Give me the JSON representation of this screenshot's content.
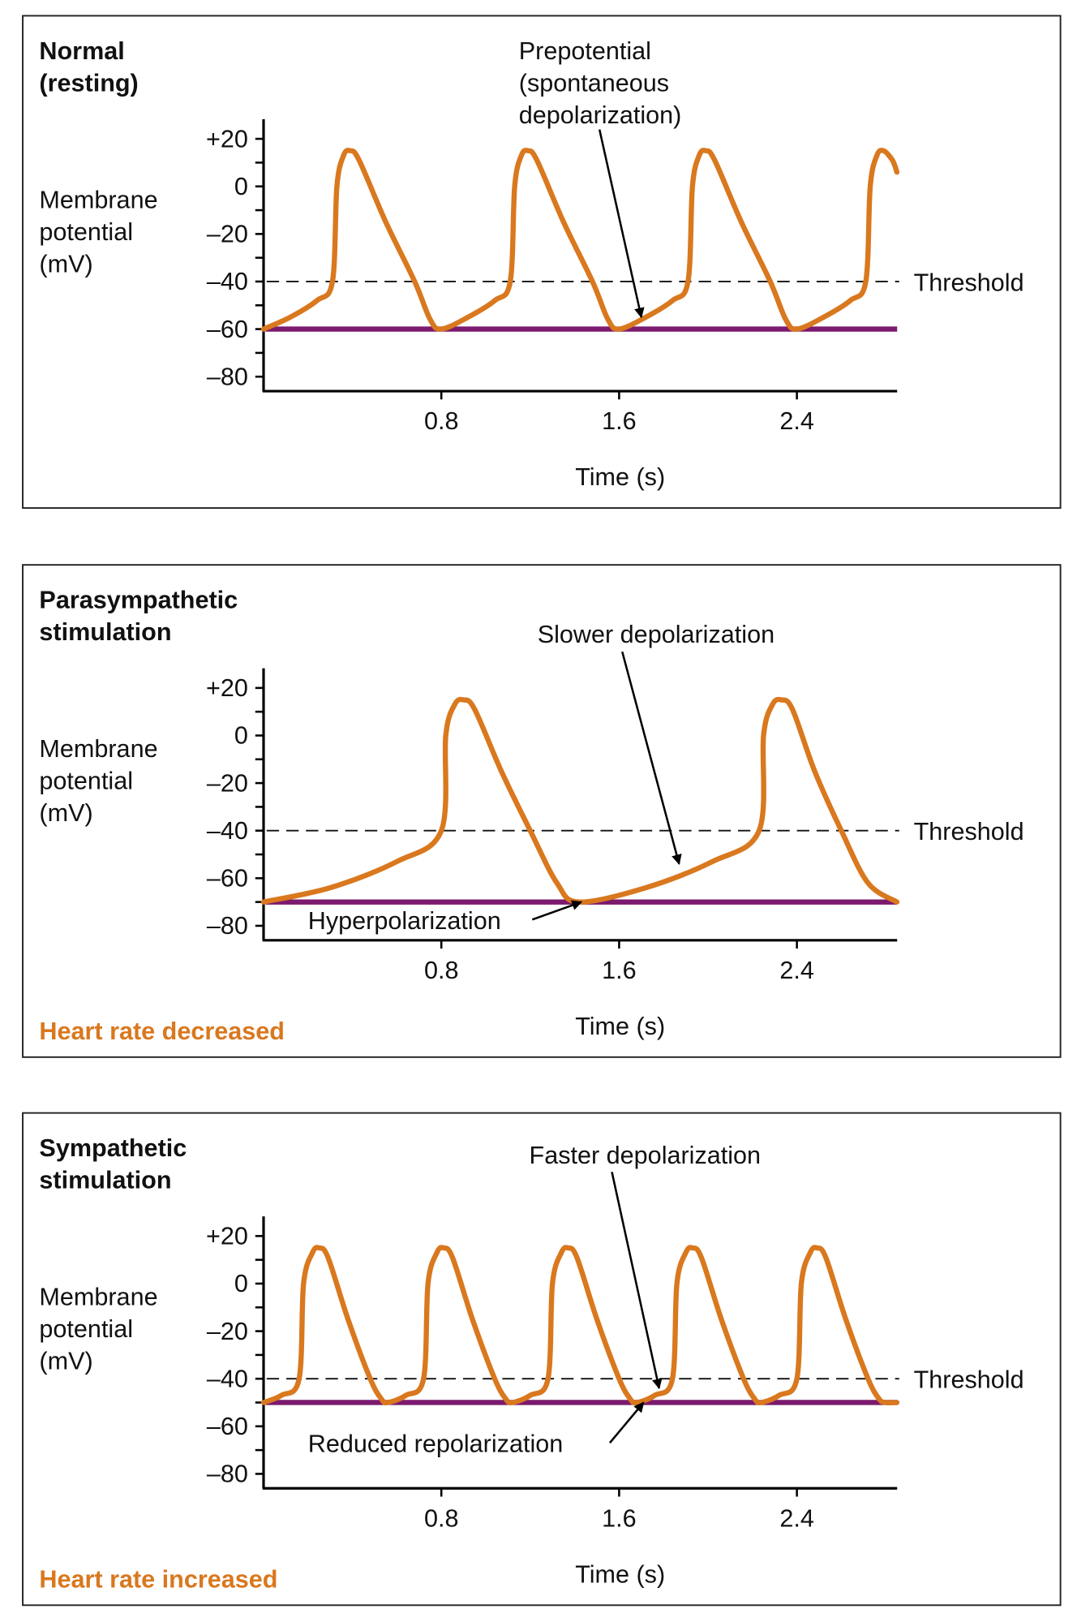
{
  "colors": {
    "trace": "#d9781e",
    "baseline": "#7b1a6e",
    "outcome": "#d9781e",
    "axis": "#111111"
  },
  "chart_data": [
    {
      "type": "line",
      "title": [
        "Normal",
        "(resting)"
      ],
      "ylabel": [
        "Membrane",
        "potential",
        "(mV)"
      ],
      "xlabel": "Time (s)",
      "yticks": [
        "+20",
        "0",
        "–20",
        "–40",
        "–60",
        "–80"
      ],
      "ytick_values": [
        20,
        0,
        -20,
        -40,
        -60,
        -80
      ],
      "xticks": [
        "0.8",
        "1.6",
        "2.4"
      ],
      "xtick_values": [
        0.8,
        1.6,
        2.4
      ],
      "xlim": [
        0,
        2.85
      ],
      "ylim": [
        -88,
        28
      ],
      "threshold": {
        "value": -40,
        "label": "Threshold"
      },
      "baseline": -60,
      "outcome": "",
      "annotations": [
        {
          "lines": [
            "Prepotential",
            "(spontaneous",
            "depolarization)"
          ],
          "points_to": [
            1.7,
            -55
          ]
        }
      ],
      "series": [
        {
          "x": [
            0,
            0.12,
            0.24,
            0.31,
            0.33,
            0.36,
            0.39,
            0.43,
            0.55,
            0.68,
            0.75,
            0.8,
            0.92,
            1.04,
            1.11,
            1.13,
            1.16,
            1.19,
            1.23,
            1.35,
            1.48,
            1.55,
            1.6,
            1.72,
            1.84,
            1.91,
            1.93,
            1.96,
            1.99,
            2.03,
            2.15,
            2.28,
            2.35,
            2.4,
            2.52,
            2.64,
            2.71,
            2.73,
            2.76,
            2.79,
            2.83,
            2.85
          ],
          "y": [
            -60,
            -55,
            -48,
            -40,
            0,
            13,
            15,
            11,
            -15,
            -40,
            -56,
            -60,
            -55,
            -48,
            -40,
            0,
            13,
            15,
            11,
            -15,
            -40,
            -56,
            -60,
            -55,
            -48,
            -40,
            0,
            13,
            15,
            11,
            -15,
            -40,
            -56,
            -60,
            -55,
            -48,
            -40,
            0,
            13,
            15,
            11,
            6
          ]
        }
      ]
    },
    {
      "type": "line",
      "title": [
        "Parasympathetic",
        "stimulation"
      ],
      "ylabel": [
        "Membrane",
        "potential",
        "(mV)"
      ],
      "xlabel": "Time (s)",
      "yticks": [
        "+20",
        "0",
        "–20",
        "–40",
        "–60",
        "–80"
      ],
      "ytick_values": [
        20,
        0,
        -20,
        -40,
        -60,
        -80
      ],
      "xticks": [
        "0.8",
        "1.6",
        "2.4"
      ],
      "xtick_values": [
        0.8,
        1.6,
        2.4
      ],
      "xlim": [
        0,
        2.85
      ],
      "ylim": [
        -88,
        28
      ],
      "threshold": {
        "value": -40,
        "label": "Threshold"
      },
      "baseline": -70,
      "outcome": "Heart rate decreased",
      "annotations": [
        {
          "lines": [
            "Slower depolarization"
          ],
          "points_to": [
            1.87,
            -54
          ]
        },
        {
          "lines": [
            "Hyperpolarization"
          ],
          "points_to": [
            1.43,
            -70
          ]
        }
      ],
      "series": [
        {
          "x": [
            0,
            0.3,
            0.6,
            0.8,
            0.82,
            0.86,
            0.9,
            0.95,
            1.07,
            1.2,
            1.32,
            1.42,
            1.72,
            2.02,
            2.23,
            2.25,
            2.29,
            2.33,
            2.38,
            2.48,
            2.6,
            2.72,
            2.85
          ],
          "y": [
            -70,
            -64,
            -53,
            -40,
            0,
            13,
            15,
            11,
            -15,
            -40,
            -62,
            -70,
            -64,
            -53,
            -40,
            0,
            13,
            15,
            11,
            -15,
            -40,
            -62,
            -70
          ]
        }
      ]
    },
    {
      "type": "line",
      "title": [
        "Sympathetic",
        "stimulation"
      ],
      "ylabel": [
        "Membrane",
        "potential",
        "(mV)"
      ],
      "xlabel": "Time (s)",
      "yticks": [
        "+20",
        "0",
        "–20",
        "–40",
        "–60",
        "–80"
      ],
      "ytick_values": [
        20,
        0,
        -20,
        -40,
        -60,
        -80
      ],
      "xticks": [
        "0.8",
        "1.6",
        "2.4"
      ],
      "xtick_values": [
        0.8,
        1.6,
        2.4
      ],
      "xlim": [
        0,
        2.85
      ],
      "ylim": [
        -88,
        28
      ],
      "threshold": {
        "value": -40,
        "label": "Threshold"
      },
      "baseline": -50,
      "outcome": "Heart rate increased",
      "annotations": [
        {
          "lines": [
            "Faster depolarization"
          ],
          "points_to": [
            1.78,
            -44
          ]
        },
        {
          "lines": [
            "Reduced repolarization"
          ],
          "points_to": [
            1.71,
            -50
          ]
        }
      ],
      "series": [
        {
          "x": [
            0,
            0.08,
            0.16,
            0.18,
            0.22,
            0.25,
            0.29,
            0.38,
            0.48,
            0.53,
            0.56,
            0.64,
            0.72,
            0.74,
            0.78,
            0.81,
            0.85,
            0.94,
            1.04,
            1.09,
            1.12,
            1.2,
            1.28,
            1.3,
            1.34,
            1.37,
            1.41,
            1.5,
            1.6,
            1.65,
            1.68,
            1.76,
            1.84,
            1.86,
            1.9,
            1.93,
            1.97,
            2.06,
            2.16,
            2.21,
            2.24,
            2.32,
            2.4,
            2.42,
            2.46,
            2.49,
            2.53,
            2.62,
            2.72,
            2.77,
            2.8,
            2.85
          ],
          "y": [
            -50,
            -47,
            -40,
            0,
            13,
            15,
            11,
            -15,
            -40,
            -48.5,
            -50,
            -47,
            -40,
            0,
            13,
            15,
            11,
            -15,
            -40,
            -48.5,
            -50,
            -47,
            -40,
            0,
            13,
            15,
            11,
            -15,
            -40,
            -48.5,
            -50,
            -47,
            -40,
            0,
            13,
            15,
            11,
            -15,
            -40,
            -48.5,
            -50,
            -47,
            -40,
            0,
            13,
            15,
            11,
            -15,
            -40,
            -48.5,
            -50,
            -50
          ]
        }
      ]
    }
  ]
}
